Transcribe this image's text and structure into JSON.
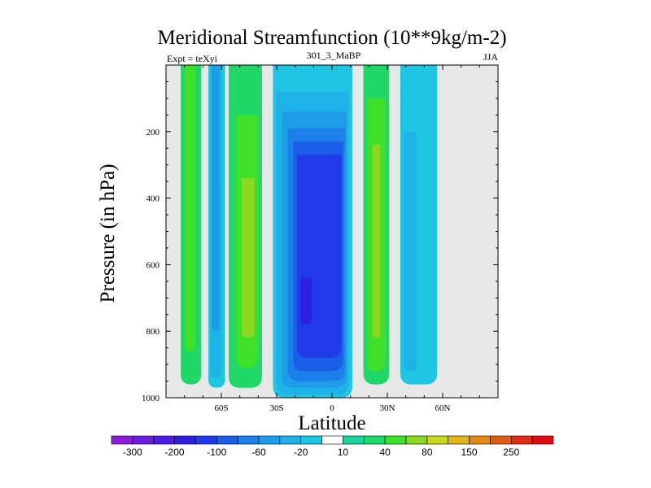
{
  "chart_data": {
    "type": "heatmap",
    "title": "Meridional Streamfunction (10**9kg/m-2)",
    "subtitle_left": "Expt = teXyi",
    "subtitle_center": "301_3_MaBP",
    "subtitle_right": "JJA",
    "xlabel": "Latitude",
    "ylabel": "Pressure (in hPa)",
    "xlim": [
      -90,
      90
    ],
    "ylim": [
      1000,
      0
    ],
    "x_ticks": [
      {
        "value": -60,
        "label": "60S"
      },
      {
        "value": -30,
        "label": "30S"
      },
      {
        "value": 0,
        "label": "0"
      },
      {
        "value": 30,
        "label": "30N"
      },
      {
        "value": 60,
        "label": "60N"
      }
    ],
    "y_ticks": [
      {
        "value": 200,
        "label": "200"
      },
      {
        "value": 400,
        "label": "400"
      },
      {
        "value": 600,
        "label": "600"
      },
      {
        "value": 800,
        "label": "800"
      },
      {
        "value": 1000,
        "label": "1000"
      }
    ],
    "background_color": "#e8e8e8",
    "colorbar": {
      "levels": [
        -300,
        -250,
        -200,
        -150,
        -100,
        -80,
        -60,
        -40,
        -20,
        -10,
        10,
        20,
        40,
        60,
        80,
        100,
        150,
        200,
        250,
        300
      ],
      "labels": [
        "-300",
        "-200",
        "-100",
        "-60",
        "-20",
        "10",
        "40",
        "80",
        "150",
        "250"
      ],
      "colors": [
        "#8a1ed8",
        "#6a1ddc",
        "#4a1ce0",
        "#2e1fe0",
        "#1f3ae6",
        "#1a5ee8",
        "#1c7fea",
        "#1e9ce8",
        "#1fb2e6",
        "#1fc6e2",
        "#ffffff",
        "#1fd3a0",
        "#20d86a",
        "#3ee02a",
        "#8ad820",
        "#c8d81e",
        "#e0b81c",
        "#e08a1a",
        "#e05a18",
        "#e02c16",
        "#e00c12"
      ]
    },
    "contour_bands": [
      {
        "name": "band-80S",
        "lat_min": -82,
        "lat_max": -71,
        "p_top": 0,
        "p_bottom": 960,
        "fill": "#20d86a",
        "inner": [
          {
            "lat_min": -80,
            "lat_max": -74,
            "p_top": 0,
            "p_bottom": 860,
            "fill": "#3ee02a"
          }
        ]
      },
      {
        "name": "band-65S",
        "lat_min": -67,
        "lat_max": -58,
        "p_top": 0,
        "p_bottom": 970,
        "fill": "#1fc6e2",
        "inner": [
          {
            "lat_min": -66,
            "lat_max": -60,
            "p_top": 0,
            "p_bottom": 940,
            "fill": "#1fb2e6"
          },
          {
            "lat_min": -65,
            "lat_max": -61,
            "p_top": 0,
            "p_bottom": 800,
            "fill": "#1e9ce8"
          }
        ]
      },
      {
        "name": "band-45S",
        "lat_min": -56,
        "lat_max": -38,
        "p_top": 0,
        "p_bottom": 970,
        "fill": "#20d86a",
        "inner": [
          {
            "lat_min": -52,
            "lat_max": -40,
            "p_top": 150,
            "p_bottom": 910,
            "fill": "#3ee02a"
          },
          {
            "lat_min": -49,
            "lat_max": -42,
            "p_top": 340,
            "p_bottom": 820,
            "fill": "#8ad820"
          }
        ]
      },
      {
        "name": "band-eq",
        "lat_min": -32,
        "lat_max": 11,
        "p_top": 0,
        "p_bottom": 1000,
        "fill": "#1fc6e2",
        "inner": [
          {
            "lat_min": -30,
            "lat_max": 9,
            "p_top": 80,
            "p_bottom": 990,
            "fill": "#1fb2e6"
          },
          {
            "lat_min": -27,
            "lat_max": 8,
            "p_top": 140,
            "p_bottom": 970,
            "fill": "#1e9ce8"
          },
          {
            "lat_min": -24,
            "lat_max": 7,
            "p_top": 190,
            "p_bottom": 950,
            "fill": "#1c7fea"
          },
          {
            "lat_min": -21,
            "lat_max": 6,
            "p_top": 230,
            "p_bottom": 920,
            "fill": "#1a5ee8"
          },
          {
            "lat_min": -19,
            "lat_max": 5,
            "p_top": 270,
            "p_bottom": 880,
            "fill": "#1f3ae6"
          },
          {
            "lat_min": -17,
            "lat_max": -11,
            "p_top": 640,
            "p_bottom": 780,
            "fill": "#2e1fe0"
          }
        ]
      },
      {
        "name": "band-25N",
        "lat_min": 17,
        "lat_max": 31,
        "p_top": 0,
        "p_bottom": 960,
        "fill": "#20d86a",
        "inner": [
          {
            "lat_min": 19,
            "lat_max": 29,
            "p_top": 100,
            "p_bottom": 920,
            "fill": "#3ee02a"
          },
          {
            "lat_min": 22,
            "lat_max": 26,
            "p_top": 240,
            "p_bottom": 820,
            "fill": "#8ad820"
          }
        ]
      },
      {
        "name": "band-50N",
        "lat_min": 37,
        "lat_max": 57,
        "p_top": 0,
        "p_bottom": 960,
        "fill": "#1fc6e2",
        "inner": [
          {
            "lat_min": 39,
            "lat_max": 46,
            "p_top": 200,
            "p_bottom": 920,
            "fill": "#1fb2e6"
          }
        ]
      }
    ]
  }
}
